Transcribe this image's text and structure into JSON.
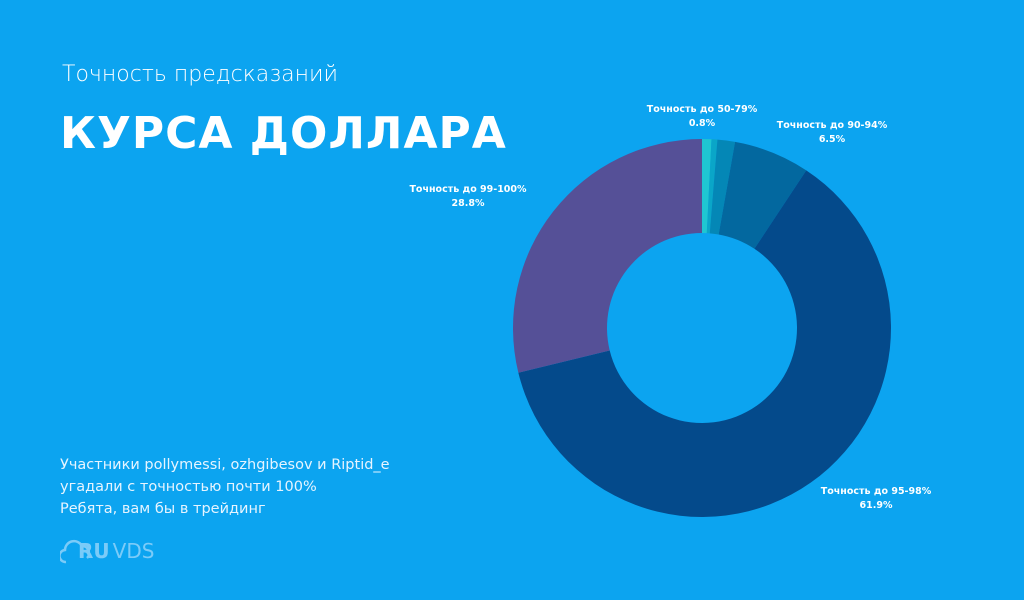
{
  "header": {
    "subtitle": "Точность предсказаний",
    "title": "КУРСА ДОЛЛАРА"
  },
  "note": [
    "Участники pollymessi, ozhgibesov и Riptid_e",
    "угадали с точностью почти 100%",
    "Ребята, вам бы в трейдинг"
  ],
  "logo": {
    "part1": "RU",
    "part2": "VDS"
  },
  "chart_data": {
    "type": "pie",
    "donut": true,
    "title": "Точность предсказаний КУРСА ДОЛЛАРА",
    "slices": [
      {
        "label": "Точность до 50-79%",
        "value": 0.8,
        "value_label": "0.8%",
        "color": "#1fc6d2"
      },
      {
        "label": "",
        "value": 0.5,
        "value_label": "",
        "color": "#0aa6c8"
      },
      {
        "label": "",
        "value": 1.5,
        "value_label": "",
        "color": "#0487b6"
      },
      {
        "label": "Точность до 90-94%",
        "value": 6.5,
        "value_label": "6.5%",
        "color": "#03689f"
      },
      {
        "label": "Точность до 95-98%",
        "value": 61.9,
        "value_label": "61.9%",
        "color": "#044a8b"
      },
      {
        "label": "Точность до 99-100%",
        "value": 28.8,
        "value_label": "28.8%",
        "color": "#555097"
      }
    ]
  }
}
